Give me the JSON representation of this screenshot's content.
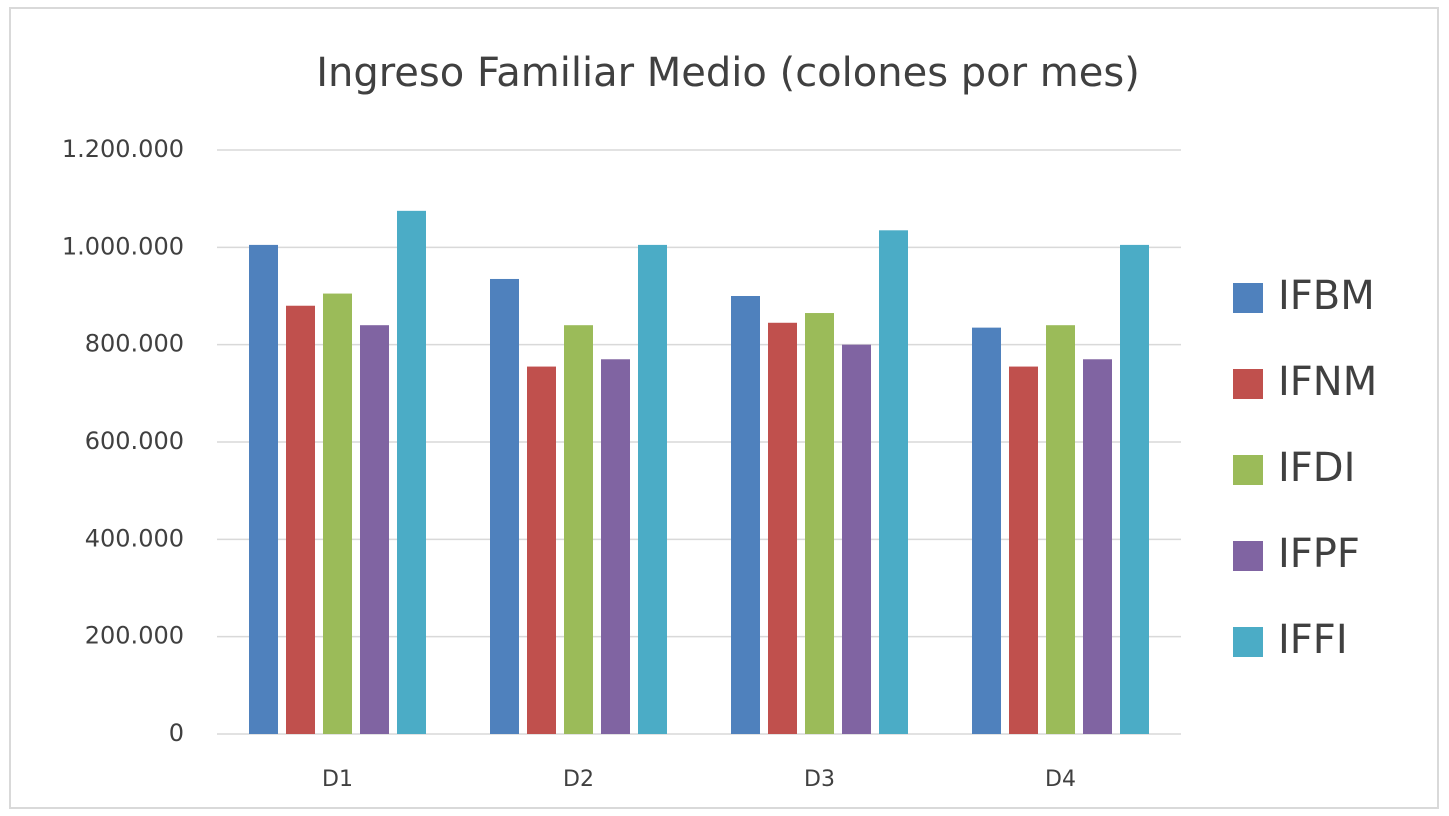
{
  "chart_data": {
    "type": "bar",
    "title": "Ingreso Familiar Medio (colones por mes)",
    "categories": [
      "D1",
      "D2",
      "D3",
      "D4"
    ],
    "series": [
      {
        "name": "IFBM",
        "color": "#4f81bd",
        "values": [
          1005000,
          935000,
          900000,
          835000
        ]
      },
      {
        "name": "IFNM",
        "color": "#c0504d",
        "values": [
          880000,
          755000,
          845000,
          755000
        ]
      },
      {
        "name": "IFDI",
        "color": "#9bbb59",
        "values": [
          905000,
          840000,
          865000,
          840000
        ]
      },
      {
        "name": "IFPF",
        "color": "#8064a2",
        "values": [
          840000,
          770000,
          800000,
          770000
        ]
      },
      {
        "name": "IFFI",
        "color": "#4bacc6",
        "values": [
          1075000,
          1005000,
          1035000,
          1005000
        ]
      }
    ],
    "ylim": [
      0,
      1200000
    ],
    "yticks": [
      0,
      {
        "value": 200000,
        "label": "200.000"
      },
      {
        "value": 400000,
        "label": "400.000"
      },
      {
        "value": 600000,
        "label": "600.000"
      },
      {
        "value": 800000,
        "label": "800.000"
      },
      {
        "value": 1000000,
        "label": "1.000.000"
      },
      {
        "value": 1200000,
        "label": "1.200.000"
      }
    ],
    "grid": true,
    "legend": "right"
  }
}
